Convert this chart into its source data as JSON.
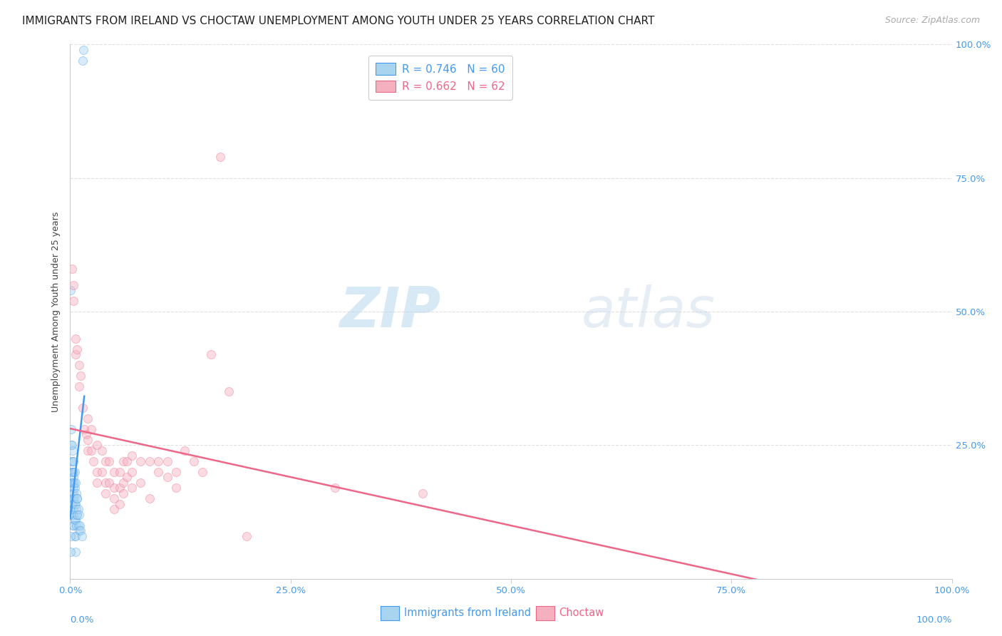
{
  "title": "IMMIGRANTS FROM IRELAND VS CHOCTAW UNEMPLOYMENT AMONG YOUTH UNDER 25 YEARS CORRELATION CHART",
  "source": "Source: ZipAtlas.com",
  "ylabel": "Unemployment Among Youth under 25 years",
  "xlabel_blue": "Immigrants from Ireland",
  "xlabel_pink": "Choctaw",
  "legend_blue_r": "R = 0.746",
  "legend_blue_n": "N = 60",
  "legend_pink_r": "R = 0.662",
  "legend_pink_n": "N = 62",
  "watermark_zip": "ZIP",
  "watermark_atlas": "atlas",
  "blue_scatter": [
    [
      0.0005,
      0.54
    ],
    [
      0.001,
      0.28
    ],
    [
      0.001,
      0.25
    ],
    [
      0.0012,
      0.22
    ],
    [
      0.0015,
      0.2
    ],
    [
      0.0015,
      0.18
    ],
    [
      0.0018,
      0.18
    ],
    [
      0.002,
      0.16
    ],
    [
      0.002,
      0.14
    ],
    [
      0.002,
      0.13
    ],
    [
      0.0022,
      0.25
    ],
    [
      0.0022,
      0.2
    ],
    [
      0.0025,
      0.22
    ],
    [
      0.0025,
      0.18
    ],
    [
      0.0025,
      0.15
    ],
    [
      0.003,
      0.24
    ],
    [
      0.003,
      0.2
    ],
    [
      0.003,
      0.18
    ],
    [
      0.003,
      0.15
    ],
    [
      0.003,
      0.12
    ],
    [
      0.003,
      0.1
    ],
    [
      0.0035,
      0.2
    ],
    [
      0.0035,
      0.17
    ],
    [
      0.0035,
      0.14
    ],
    [
      0.0035,
      0.12
    ],
    [
      0.004,
      0.22
    ],
    [
      0.004,
      0.19
    ],
    [
      0.004,
      0.16
    ],
    [
      0.004,
      0.13
    ],
    [
      0.004,
      0.1
    ],
    [
      0.0045,
      0.18
    ],
    [
      0.0045,
      0.15
    ],
    [
      0.005,
      0.2
    ],
    [
      0.005,
      0.17
    ],
    [
      0.005,
      0.14
    ],
    [
      0.005,
      0.11
    ],
    [
      0.005,
      0.08
    ],
    [
      0.006,
      0.18
    ],
    [
      0.006,
      0.14
    ],
    [
      0.006,
      0.11
    ],
    [
      0.006,
      0.08
    ],
    [
      0.006,
      0.05
    ],
    [
      0.007,
      0.16
    ],
    [
      0.007,
      0.13
    ],
    [
      0.007,
      0.1
    ],
    [
      0.0075,
      0.15
    ],
    [
      0.0075,
      0.12
    ],
    [
      0.008,
      0.15
    ],
    [
      0.008,
      0.12
    ],
    [
      0.009,
      0.13
    ],
    [
      0.009,
      0.1
    ],
    [
      0.01,
      0.12
    ],
    [
      0.01,
      0.09
    ],
    [
      0.011,
      0.1
    ],
    [
      0.012,
      0.09
    ],
    [
      0.013,
      0.08
    ],
    [
      0.0145,
      0.97
    ],
    [
      0.0148,
      0.99
    ],
    [
      0.0001,
      0.08
    ],
    [
      0.0002,
      0.05
    ]
  ],
  "pink_scatter": [
    [
      0.002,
      0.58
    ],
    [
      0.004,
      0.55
    ],
    [
      0.004,
      0.52
    ],
    [
      0.006,
      0.45
    ],
    [
      0.006,
      0.42
    ],
    [
      0.008,
      0.43
    ],
    [
      0.01,
      0.4
    ],
    [
      0.01,
      0.36
    ],
    [
      0.012,
      0.38
    ],
    [
      0.014,
      0.32
    ],
    [
      0.016,
      0.28
    ],
    [
      0.018,
      0.27
    ],
    [
      0.02,
      0.3
    ],
    [
      0.02,
      0.26
    ],
    [
      0.02,
      0.24
    ],
    [
      0.024,
      0.28
    ],
    [
      0.024,
      0.24
    ],
    [
      0.026,
      0.22
    ],
    [
      0.03,
      0.25
    ],
    [
      0.03,
      0.2
    ],
    [
      0.03,
      0.18
    ],
    [
      0.036,
      0.24
    ],
    [
      0.036,
      0.2
    ],
    [
      0.04,
      0.22
    ],
    [
      0.04,
      0.18
    ],
    [
      0.04,
      0.16
    ],
    [
      0.044,
      0.22
    ],
    [
      0.044,
      0.18
    ],
    [
      0.05,
      0.2
    ],
    [
      0.05,
      0.17
    ],
    [
      0.05,
      0.15
    ],
    [
      0.05,
      0.13
    ],
    [
      0.056,
      0.2
    ],
    [
      0.056,
      0.17
    ],
    [
      0.056,
      0.14
    ],
    [
      0.06,
      0.22
    ],
    [
      0.06,
      0.18
    ],
    [
      0.06,
      0.16
    ],
    [
      0.064,
      0.22
    ],
    [
      0.064,
      0.19
    ],
    [
      0.07,
      0.23
    ],
    [
      0.07,
      0.2
    ],
    [
      0.07,
      0.17
    ],
    [
      0.08,
      0.22
    ],
    [
      0.08,
      0.18
    ],
    [
      0.09,
      0.22
    ],
    [
      0.09,
      0.15
    ],
    [
      0.1,
      0.2
    ],
    [
      0.1,
      0.22
    ],
    [
      0.11,
      0.22
    ],
    [
      0.11,
      0.19
    ],
    [
      0.12,
      0.2
    ],
    [
      0.12,
      0.17
    ],
    [
      0.13,
      0.24
    ],
    [
      0.14,
      0.22
    ],
    [
      0.15,
      0.2
    ],
    [
      0.16,
      0.42
    ],
    [
      0.17,
      0.79
    ],
    [
      0.18,
      0.35
    ],
    [
      0.2,
      0.08
    ],
    [
      0.3,
      0.17
    ],
    [
      0.4,
      0.16
    ]
  ],
  "blue_color": "#a8d4f0",
  "pink_color": "#f5b0c0",
  "blue_line_color": "#4499ee",
  "pink_line_color": "#ee6688",
  "xlim": [
    0.0,
    1.0
  ],
  "ylim": [
    0.0,
    1.0
  ],
  "xticks": [
    0.0,
    0.25,
    0.5,
    0.75,
    1.0
  ],
  "yticks": [
    0.0,
    0.25,
    0.5,
    0.75,
    1.0
  ],
  "xtick_labels": [
    "0.0%",
    "25.0%",
    "50.0%",
    "75.0%",
    "100.0%"
  ],
  "right_ytick_labels": [
    "",
    "25.0%",
    "50.0%",
    "75.0%",
    "100.0%"
  ],
  "title_fontsize": 11,
  "source_fontsize": 9,
  "ylabel_fontsize": 9,
  "tick_fontsize": 9.5,
  "legend_fontsize": 11,
  "marker_size": 75,
  "marker_alpha": 0.45,
  "background_color": "#ffffff",
  "grid_color": "#e0e0e0"
}
